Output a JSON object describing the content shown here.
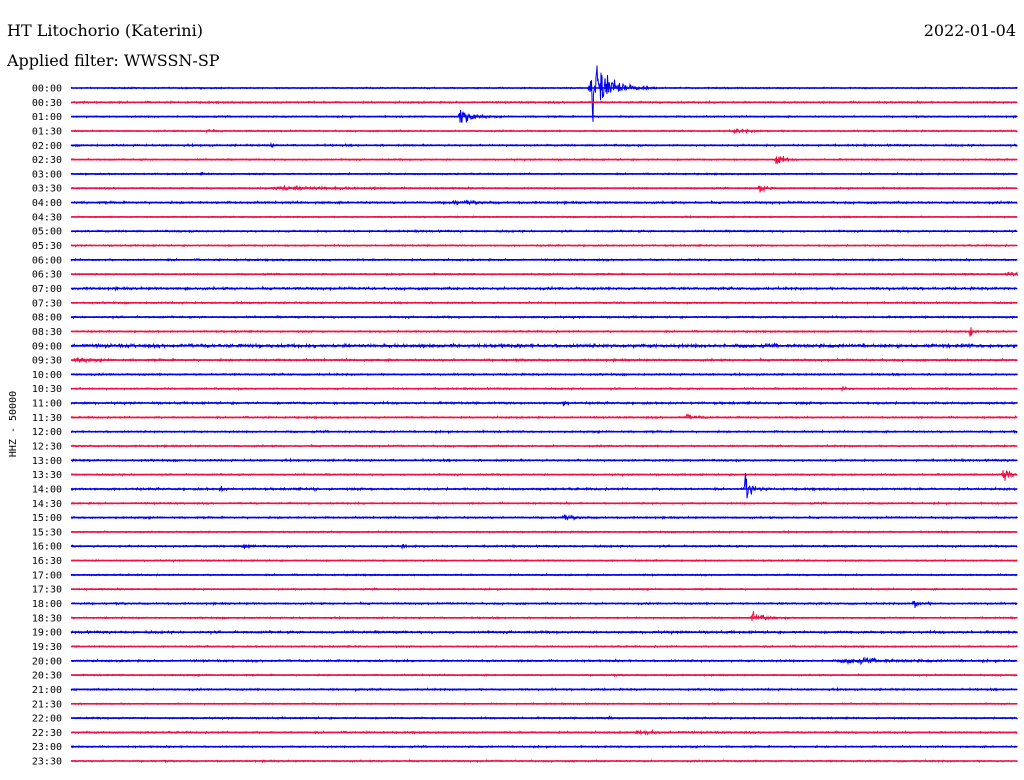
{
  "header": {
    "station": "HT Litochorio (Katerini)",
    "date": "2022-01-04",
    "filter": "Applied filter: WWSSN-SP"
  },
  "chart_data": {
    "type": "line",
    "ylabel": "HHZ - 50000",
    "colors": [
      "#0000ee",
      "#ee1144"
    ],
    "lines": [
      {
        "label": "00:00",
        "noise": 0.9,
        "events": [
          {
            "t": 0.551,
            "amp": 58,
            "dur": 0.03
          }
        ]
      },
      {
        "label": "00:30",
        "noise": 1.2,
        "events": []
      },
      {
        "label": "01:00",
        "noise": 1.0,
        "events": [
          {
            "t": 0.41,
            "amp": 18,
            "dur": 0.02
          }
        ]
      },
      {
        "label": "01:30",
        "noise": 1.0,
        "events": [
          {
            "t": 0.142,
            "amp": 5,
            "dur": 0.01
          },
          {
            "t": 0.7,
            "amp": 3,
            "dur": 0.03
          }
        ]
      },
      {
        "label": "02:00",
        "noise": 1.2,
        "events": [
          {
            "t": 0.21,
            "amp": 4,
            "dur": 0.004
          }
        ]
      },
      {
        "label": "02:30",
        "noise": 1.0,
        "events": [
          {
            "t": 0.745,
            "amp": 14,
            "dur": 0.012
          }
        ]
      },
      {
        "label": "03:00",
        "noise": 1.0,
        "events": [
          {
            "t": 0.137,
            "amp": 3,
            "dur": 0.004
          }
        ]
      },
      {
        "label": "03:30",
        "noise": 1.0,
        "events": [
          {
            "t": 0.22,
            "amp": 3,
            "dur": 0.12
          },
          {
            "t": 0.727,
            "amp": 10,
            "dur": 0.01
          }
        ]
      },
      {
        "label": "04:00",
        "noise": 1.4,
        "events": [
          {
            "t": 0.4,
            "amp": 2,
            "dur": 0.05
          }
        ]
      },
      {
        "label": "04:30",
        "noise": 0.9,
        "events": []
      },
      {
        "label": "05:00",
        "noise": 1.2,
        "events": []
      },
      {
        "label": "05:30",
        "noise": 1.0,
        "events": []
      },
      {
        "label": "06:00",
        "noise": 1.2,
        "events": []
      },
      {
        "label": "06:30",
        "noise": 1.0,
        "events": [
          {
            "t": 0.99,
            "amp": 4,
            "dur": 0.02
          }
        ]
      },
      {
        "label": "07:00",
        "noise": 1.6,
        "events": [
          {
            "t": 0.12,
            "amp": 3,
            "dur": 0.004
          }
        ]
      },
      {
        "label": "07:30",
        "noise": 1.1,
        "events": []
      },
      {
        "label": "08:00",
        "noise": 1.2,
        "events": []
      },
      {
        "label": "08:30",
        "noise": 1.1,
        "events": [
          {
            "t": 0.95,
            "amp": 8,
            "dur": 0.006
          }
        ]
      },
      {
        "label": "09:00",
        "noise": 2.2,
        "events": []
      },
      {
        "label": "09:30",
        "noise": 1.4,
        "events": [
          {
            "t": 0.005,
            "amp": 4,
            "dur": 0.02
          }
        ]
      },
      {
        "label": "10:00",
        "noise": 1.2,
        "events": []
      },
      {
        "label": "10:30",
        "noise": 1.1,
        "events": [
          {
            "t": 0.815,
            "amp": 7,
            "dur": 0.005
          }
        ]
      },
      {
        "label": "11:00",
        "noise": 1.4,
        "events": [
          {
            "t": 0.52,
            "amp": 3,
            "dur": 0.01
          }
        ]
      },
      {
        "label": "11:30",
        "noise": 1.1,
        "events": [
          {
            "t": 0.65,
            "amp": 4,
            "dur": 0.02
          }
        ]
      },
      {
        "label": "12:00",
        "noise": 1.2,
        "events": []
      },
      {
        "label": "12:30",
        "noise": 1.1,
        "events": []
      },
      {
        "label": "13:00",
        "noise": 1.3,
        "events": []
      },
      {
        "label": "13:30",
        "noise": 1.1,
        "events": [
          {
            "t": 0.985,
            "amp": 10,
            "dur": 0.015
          }
        ]
      },
      {
        "label": "14:00",
        "noise": 1.4,
        "events": [
          {
            "t": 0.157,
            "amp": 6,
            "dur": 0.006
          },
          {
            "t": 0.255,
            "amp": 7,
            "dur": 0.004
          },
          {
            "t": 0.7125,
            "amp": 22,
            "dur": 0.012
          }
        ]
      },
      {
        "label": "14:30",
        "noise": 1.1,
        "events": []
      },
      {
        "label": "15:00",
        "noise": 1.2,
        "events": [
          {
            "t": 0.52,
            "amp": 2,
            "dur": 0.03
          }
        ]
      },
      {
        "label": "15:30",
        "noise": 1.0,
        "events": []
      },
      {
        "label": "16:00",
        "noise": 1.2,
        "events": [
          {
            "t": 0.182,
            "amp": 6,
            "dur": 0.01
          },
          {
            "t": 0.35,
            "amp": 3,
            "dur": 0.01
          }
        ]
      },
      {
        "label": "16:30",
        "noise": 1.0,
        "events": []
      },
      {
        "label": "17:00",
        "noise": 1.0,
        "events": []
      },
      {
        "label": "17:30",
        "noise": 1.0,
        "events": []
      },
      {
        "label": "18:00",
        "noise": 1.2,
        "events": [
          {
            "t": 0.89,
            "amp": 6,
            "dur": 0.015
          }
        ]
      },
      {
        "label": "18:30",
        "noise": 1.0,
        "events": [
          {
            "t": 0.72,
            "amp": 9,
            "dur": 0.02
          }
        ]
      },
      {
        "label": "19:00",
        "noise": 1.5,
        "events": []
      },
      {
        "label": "19:30",
        "noise": 1.0,
        "events": []
      },
      {
        "label": "20:00",
        "noise": 1.3,
        "events": [
          {
            "t": 0.82,
            "amp": 3,
            "dur": 0.1
          }
        ]
      },
      {
        "label": "20:30",
        "noise": 1.0,
        "events": []
      },
      {
        "label": "21:00",
        "noise": 1.2,
        "events": [
          {
            "t": 0.3,
            "amp": 2,
            "dur": 0.004
          }
        ]
      },
      {
        "label": "21:30",
        "noise": 0.9,
        "events": []
      },
      {
        "label": "22:00",
        "noise": 1.1,
        "events": [
          {
            "t": 0.568,
            "amp": 3,
            "dur": 0.004
          }
        ]
      },
      {
        "label": "22:30",
        "noise": 1.2,
        "events": [
          {
            "t": 0.6,
            "amp": 2,
            "dur": 0.06
          }
        ]
      },
      {
        "label": "23:00",
        "noise": 1.1,
        "events": []
      },
      {
        "label": "23:30",
        "noise": 1.1,
        "events": []
      }
    ]
  }
}
